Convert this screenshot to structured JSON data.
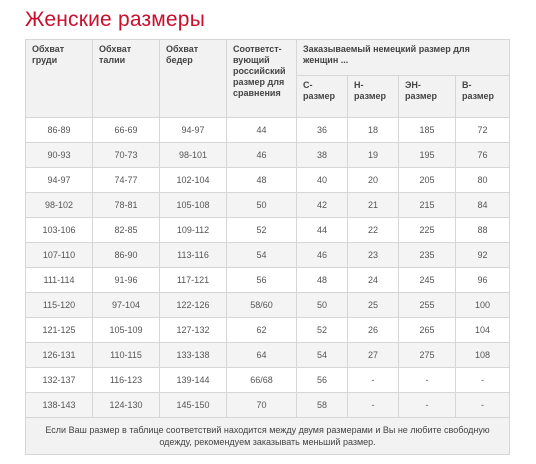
{
  "title": "Женские размеры",
  "headers": {
    "bust": "Обхват груди",
    "waist": "Обхват талии",
    "hips": "Обхват бедер",
    "russian": "Соответст-вующий российский размер для сравнения",
    "german_group": "Заказываемый немецкий размер для женщин ...",
    "sub": [
      "С-размер",
      "Н-размер",
      "ЭН-размер",
      "В-размер"
    ]
  },
  "rows": [
    [
      "86-89",
      "66-69",
      "94-97",
      "44",
      "36",
      "18",
      "185",
      "72"
    ],
    [
      "90-93",
      "70-73",
      "98-101",
      "46",
      "38",
      "19",
      "195",
      "76"
    ],
    [
      "94-97",
      "74-77",
      "102-104",
      "48",
      "40",
      "20",
      "205",
      "80"
    ],
    [
      "98-102",
      "78-81",
      "105-108",
      "50",
      "42",
      "21",
      "215",
      "84"
    ],
    [
      "103-106",
      "82-85",
      "109-112",
      "52",
      "44",
      "22",
      "225",
      "88"
    ],
    [
      "107-110",
      "86-90",
      "113-116",
      "54",
      "46",
      "23",
      "235",
      "92"
    ],
    [
      "111-114",
      "91-96",
      "117-121",
      "56",
      "48",
      "24",
      "245",
      "96"
    ],
    [
      "115-120",
      "97-104",
      "122-126",
      "58/60",
      "50",
      "25",
      "255",
      "100"
    ],
    [
      "121-125",
      "105-109",
      "127-132",
      "62",
      "52",
      "26",
      "265",
      "104"
    ],
    [
      "126-131",
      "110-115",
      "133-138",
      "64",
      "54",
      "27",
      "275",
      "108"
    ],
    [
      "132-137",
      "116-123",
      "139-144",
      "66/68",
      "56",
      "-",
      "-",
      "-"
    ],
    [
      "138-143",
      "124-130",
      "145-150",
      "70",
      "58",
      "-",
      "-",
      "-"
    ]
  ],
  "footnote": "Если Ваш размер в таблице соответствий находится между двумя размерами и Вы не любите свободную одежду, рекомендуем заказывать меньший размер."
}
